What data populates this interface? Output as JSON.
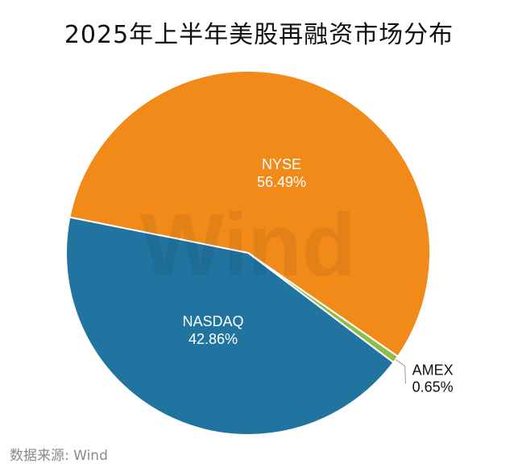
{
  "chart_data": {
    "type": "pie",
    "title": "2025年上半年美股再融资市场分布",
    "slices": [
      {
        "name": "NYSE",
        "value": 56.49,
        "label": "56.49%",
        "color": "#f28a1a",
        "label_color": "#ffffff"
      },
      {
        "name": "AMEX",
        "value": 0.65,
        "label": "0.65%",
        "color": "#8fbd4a",
        "label_color": "#111111"
      },
      {
        "name": "NASDAQ",
        "value": 42.86,
        "label": "42.86%",
        "color": "#2274a0",
        "label_color": "#ffffff"
      }
    ],
    "watermark": "Wind",
    "source": "数据来源: Wind"
  }
}
